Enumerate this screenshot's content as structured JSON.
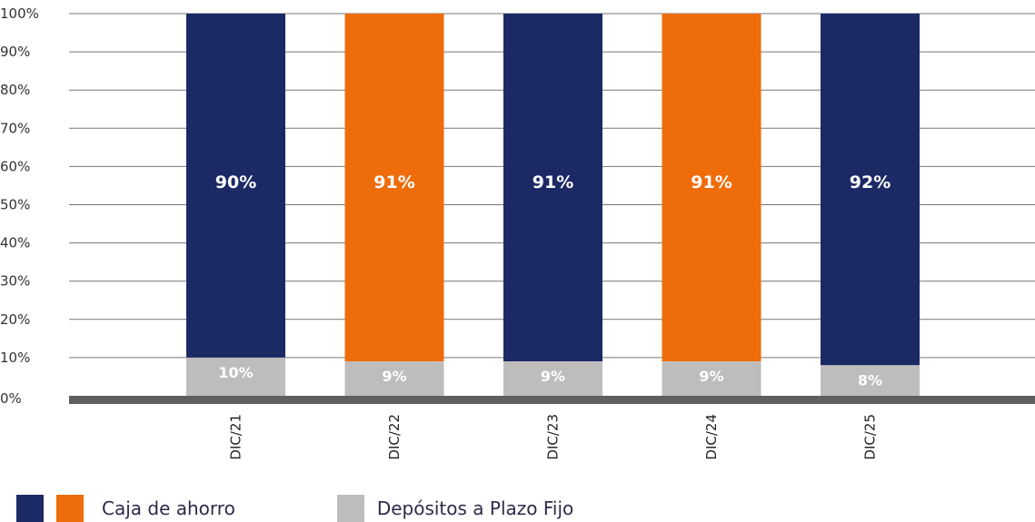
{
  "chart_data": {
    "type": "bar",
    "stacked": true,
    "categories": [
      "DIC/21",
      "DIC/22",
      "DIC/23",
      "DIC/24",
      "DIC/25"
    ],
    "y_ticks": [
      "0%",
      "10%",
      "20%",
      "30%",
      "40%",
      "50%",
      "60%",
      "70%",
      "80%",
      "90%",
      "100%"
    ],
    "ylim": [
      0,
      100
    ],
    "series": [
      {
        "name": "Depósitos a Plazo Fijo",
        "values": [
          10,
          9,
          9,
          9,
          8
        ],
        "labels": [
          "10%",
          "9%",
          "9%",
          "9%",
          "8%"
        ],
        "color": "#bfbdbc"
      },
      {
        "name": "Caja de ahorro",
        "values": [
          90,
          91,
          91,
          91,
          92
        ],
        "labels": [
          "90%",
          "91%",
          "91%",
          "91%",
          "92%"
        ],
        "colors": [
          "#1b2965",
          "#ef6c0a",
          "#1b2965",
          "#ef6c0a",
          "#1b2965"
        ]
      }
    ],
    "grid": true,
    "legend": "bottom-left",
    "legend_swatches": [
      "#1b2965",
      "#ef6c0a"
    ]
  }
}
